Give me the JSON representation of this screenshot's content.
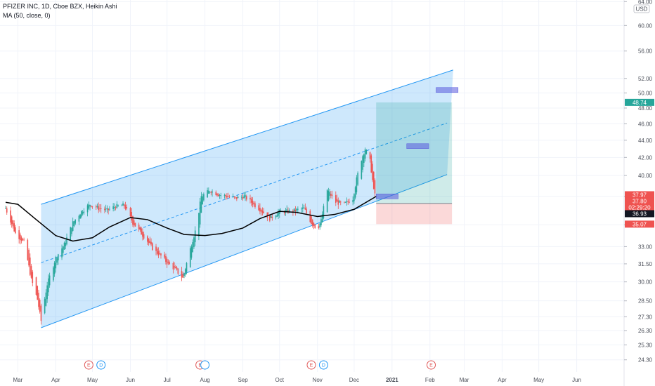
{
  "header": {
    "title": "PFIZER INC, 1D, Cboe BZX, Heikin Ashi",
    "indicator": "MA (50, close, 0)"
  },
  "currency_label": "USD",
  "chart_data": {
    "type": "candlestick",
    "title": "PFIZER INC, 1D, Cboe BZX, Heikin Ashi",
    "ylim": [
      23.5,
      64.5
    ],
    "y_scale": "log",
    "y_ticks": [
      {
        "v": 64.0,
        "label": "64.00"
      },
      {
        "v": 60.0,
        "label": "60.00"
      },
      {
        "v": 56.0,
        "label": "56.00"
      },
      {
        "v": 52.0,
        "label": "52.00"
      },
      {
        "v": 50.0,
        "label": "50.00"
      },
      {
        "v": 48.0,
        "label": "48.00"
      },
      {
        "v": 46.0,
        "label": "46.00"
      },
      {
        "v": 44.0,
        "label": "44.00"
      },
      {
        "v": 42.0,
        "label": "42.00"
      },
      {
        "v": 40.0,
        "label": "40.00"
      },
      {
        "v": 37.8,
        "label": "37.80"
      },
      {
        "v": 35.0,
        "label": "35.00"
      },
      {
        "v": 33.0,
        "label": "33.00"
      },
      {
        "v": 31.5,
        "label": "31.50"
      },
      {
        "v": 30.0,
        "label": "30.00"
      },
      {
        "v": 28.5,
        "label": "28.50"
      },
      {
        "v": 27.3,
        "label": "27.30"
      },
      {
        "v": 26.3,
        "label": "26.30"
      },
      {
        "v": 25.3,
        "label": "25.30"
      },
      {
        "v": 24.3,
        "label": "24.30"
      }
    ],
    "x_ticks": [
      {
        "date": "2020-03-01",
        "label": "Mar"
      },
      {
        "date": "2020-04-01",
        "label": "Apr"
      },
      {
        "date": "2020-05-01",
        "label": "May"
      },
      {
        "date": "2020-06-01",
        "label": "Jun"
      },
      {
        "date": "2020-07-01",
        "label": "Jul"
      },
      {
        "date": "2020-08-01",
        "label": "Aug"
      },
      {
        "date": "2020-09-01",
        "label": "Sep"
      },
      {
        "date": "2020-10-01",
        "label": "Oct"
      },
      {
        "date": "2020-11-01",
        "label": "Nov"
      },
      {
        "date": "2020-12-01",
        "label": "Dec"
      },
      {
        "date": "2021-01-01",
        "label": "2021",
        "bold": true
      },
      {
        "date": "2021-02-01",
        "label": "Feb"
      },
      {
        "date": "2021-03-01",
        "label": "Mar"
      },
      {
        "date": "2021-04-01",
        "label": "Apr"
      },
      {
        "date": "2021-05-01",
        "label": "May"
      },
      {
        "date": "2021-06-01",
        "label": "Jun"
      }
    ],
    "price_path": [
      [
        "2020-02-20",
        36.6
      ],
      [
        "2020-02-28",
        34.2
      ],
      [
        "2020-03-06",
        33.4
      ],
      [
        "2020-03-12",
        30.2
      ],
      [
        "2020-03-17",
        28.6
      ],
      [
        "2020-03-20",
        27.0
      ],
      [
        "2020-03-25",
        29.8
      ],
      [
        "2020-04-01",
        32.0
      ],
      [
        "2020-04-08",
        33.2
      ],
      [
        "2020-04-15",
        35.2
      ],
      [
        "2020-04-22",
        36.3
      ],
      [
        "2020-04-29",
        37.0
      ],
      [
        "2020-05-06",
        36.6
      ],
      [
        "2020-05-13",
        36.4
      ],
      [
        "2020-05-20",
        36.8
      ],
      [
        "2020-05-27",
        36.9
      ],
      [
        "2020-06-03",
        35.2
      ],
      [
        "2020-06-10",
        34.2
      ],
      [
        "2020-06-15",
        33.5
      ],
      [
        "2020-06-20",
        32.7
      ],
      [
        "2020-06-27",
        32.1
      ],
      [
        "2020-07-01",
        31.6
      ],
      [
        "2020-07-08",
        31.0
      ],
      [
        "2020-07-14",
        30.3
      ],
      [
        "2020-07-20",
        32.8
      ],
      [
        "2020-07-25",
        34.8
      ],
      [
        "2020-07-29",
        37.8
      ],
      [
        "2020-08-05",
        38.4
      ],
      [
        "2020-08-12",
        38.0
      ],
      [
        "2020-08-19",
        37.8
      ],
      [
        "2020-08-26",
        37.6
      ],
      [
        "2020-09-02",
        37.8
      ],
      [
        "2020-09-09",
        37.1
      ],
      [
        "2020-09-16",
        36.4
      ],
      [
        "2020-09-23",
        35.6
      ],
      [
        "2020-09-30",
        36.2
      ],
      [
        "2020-10-07",
        36.3
      ],
      [
        "2020-10-14",
        36.4
      ],
      [
        "2020-10-21",
        36.6
      ],
      [
        "2020-10-27",
        35.2
      ],
      [
        "2020-11-01",
        34.6
      ],
      [
        "2020-11-04",
        35.4
      ],
      [
        "2020-11-09",
        38.5
      ],
      [
        "2020-11-16",
        37.2
      ],
      [
        "2020-11-23",
        37.0
      ],
      [
        "2020-11-30",
        37.6
      ],
      [
        "2020-12-03",
        39.6
      ],
      [
        "2020-12-07",
        41.8
      ],
      [
        "2020-12-10",
        43.0
      ],
      [
        "2020-12-14",
        41.6
      ],
      [
        "2020-12-17",
        38.4
      ],
      [
        "2020-12-19",
        37.8
      ]
    ],
    "ma_50": [
      [
        "2020-02-20",
        37.2
      ],
      [
        "2020-03-01",
        37.0
      ],
      [
        "2020-03-15",
        35.6
      ],
      [
        "2020-04-01",
        34.0
      ],
      [
        "2020-04-15",
        33.5
      ],
      [
        "2020-05-01",
        33.8
      ],
      [
        "2020-05-15",
        34.8
      ],
      [
        "2020-06-01",
        35.7
      ],
      [
        "2020-06-15",
        35.5
      ],
      [
        "2020-07-01",
        34.7
      ],
      [
        "2020-07-15",
        34.1
      ],
      [
        "2020-08-01",
        34.0
      ],
      [
        "2020-08-15",
        34.2
      ],
      [
        "2020-09-01",
        34.7
      ],
      [
        "2020-09-15",
        35.6
      ],
      [
        "2020-10-01",
        36.3
      ],
      [
        "2020-10-15",
        36.2
      ],
      [
        "2020-11-01",
        35.8
      ],
      [
        "2020-11-15",
        36.0
      ],
      [
        "2020-12-01",
        36.5
      ],
      [
        "2020-12-19",
        37.8
      ]
    ],
    "channel": {
      "upper": [
        [
          "2020-03-20",
          37.0
        ],
        [
          "2021-02-20",
          53.2
        ]
      ],
      "mid": [
        [
          "2020-03-20",
          31.6
        ],
        [
          "2021-02-15",
          46.1
        ]
      ],
      "lower": [
        [
          "2020-03-20",
          26.5
        ],
        [
          "2021-02-15",
          40.1
        ]
      ]
    },
    "position": {
      "entry": 37.08,
      "target": 48.74,
      "stop": 35.07,
      "start": "2020-12-19",
      "end": "2021-02-19"
    },
    "range_markers": [
      {
        "date_from": "2020-12-19",
        "date_to": "2021-01-06",
        "price": 37.8
      },
      {
        "date_from": "2021-01-13",
        "date_to": "2021-01-31",
        "price": 43.3
      },
      {
        "date_from": "2021-02-06",
        "date_to": "2021-02-24",
        "price": 50.4
      }
    ],
    "events": [
      {
        "date": "2020-04-28",
        "letter": "E",
        "color": "#e05a5a"
      },
      {
        "date": "2020-05-08",
        "letter": "D",
        "color": "#2196f3"
      },
      {
        "date": "2020-07-28",
        "letter": "E",
        "color": "#e05a5a"
      },
      {
        "date": "2020-08-01",
        "letter": "",
        "color": "#2196f3"
      },
      {
        "date": "2020-10-27",
        "letter": "E",
        "color": "#e05a5a"
      },
      {
        "date": "2020-11-06",
        "letter": "D",
        "color": "#2196f3"
      },
      {
        "date": "2021-02-02",
        "letter": "E",
        "color": "#e05a5a"
      }
    ],
    "price_tags": [
      {
        "price": 48.74,
        "label": "48.74",
        "color": "#26a69a"
      },
      {
        "price": 37.97,
        "label": "37.97",
        "color": "#ef5350"
      },
      {
        "price": 37.8,
        "label": "37.80",
        "color": "#ef5350"
      },
      {
        "price": 37.08,
        "label": "02:29:20",
        "color": "#ef5350"
      },
      {
        "price": 36.93,
        "label": "36.93",
        "color": "#131722"
      },
      {
        "price": 35.07,
        "label": "35.07",
        "color": "#ef5350"
      }
    ],
    "colors": {
      "up": "#26a69a",
      "down": "#ef5350",
      "ma": "#000000",
      "channel_fill": "rgba(33,150,243,0.22)",
      "channel_line": "#2196f3",
      "profit_zone": "rgba(38,166,154,0.22)",
      "loss_zone": "rgba(239,83,80,0.22)",
      "marker": "rgba(90,90,220,0.55)"
    }
  }
}
